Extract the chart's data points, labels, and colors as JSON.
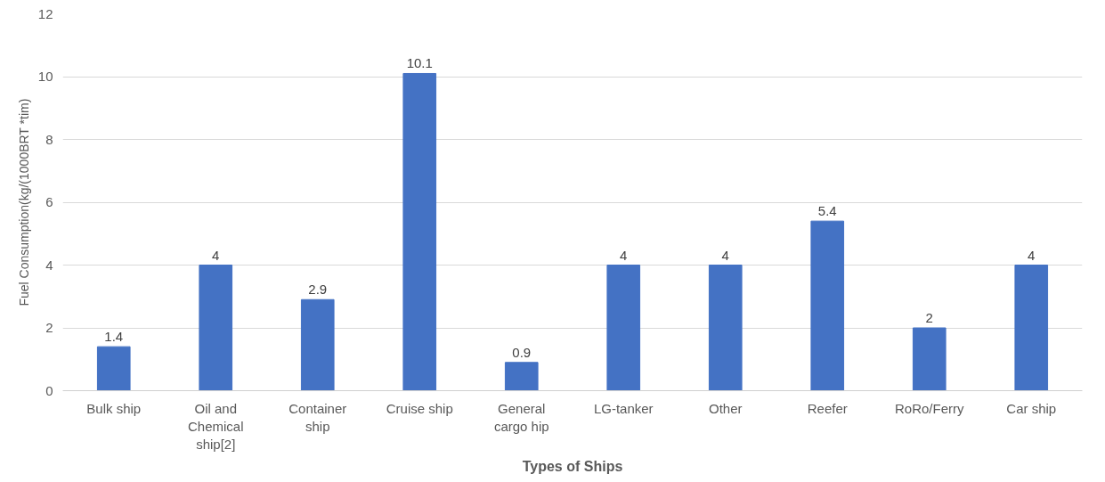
{
  "chart_data": {
    "type": "bar",
    "xlabel": "Types of Ships",
    "ylabel": "Fuel Consumption(kg/(1000BRT *tim)",
    "categories": [
      "Bulk ship",
      "Oil and Chemical ship[2]",
      "Container ship",
      "Cruise ship",
      "General cargo hip",
      "LG-tanker",
      "Other",
      "Reefer",
      "RoRo/Ferry",
      "Car ship"
    ],
    "values": [
      1.4,
      4,
      2.9,
      10.1,
      0.9,
      4,
      4,
      5.4,
      2,
      4
    ],
    "color": "#4472c4",
    "ylim": [
      0,
      12
    ],
    "yticks": [
      0,
      2,
      4,
      6,
      8,
      10,
      12
    ],
    "grid": "y",
    "data_labels": true
  }
}
